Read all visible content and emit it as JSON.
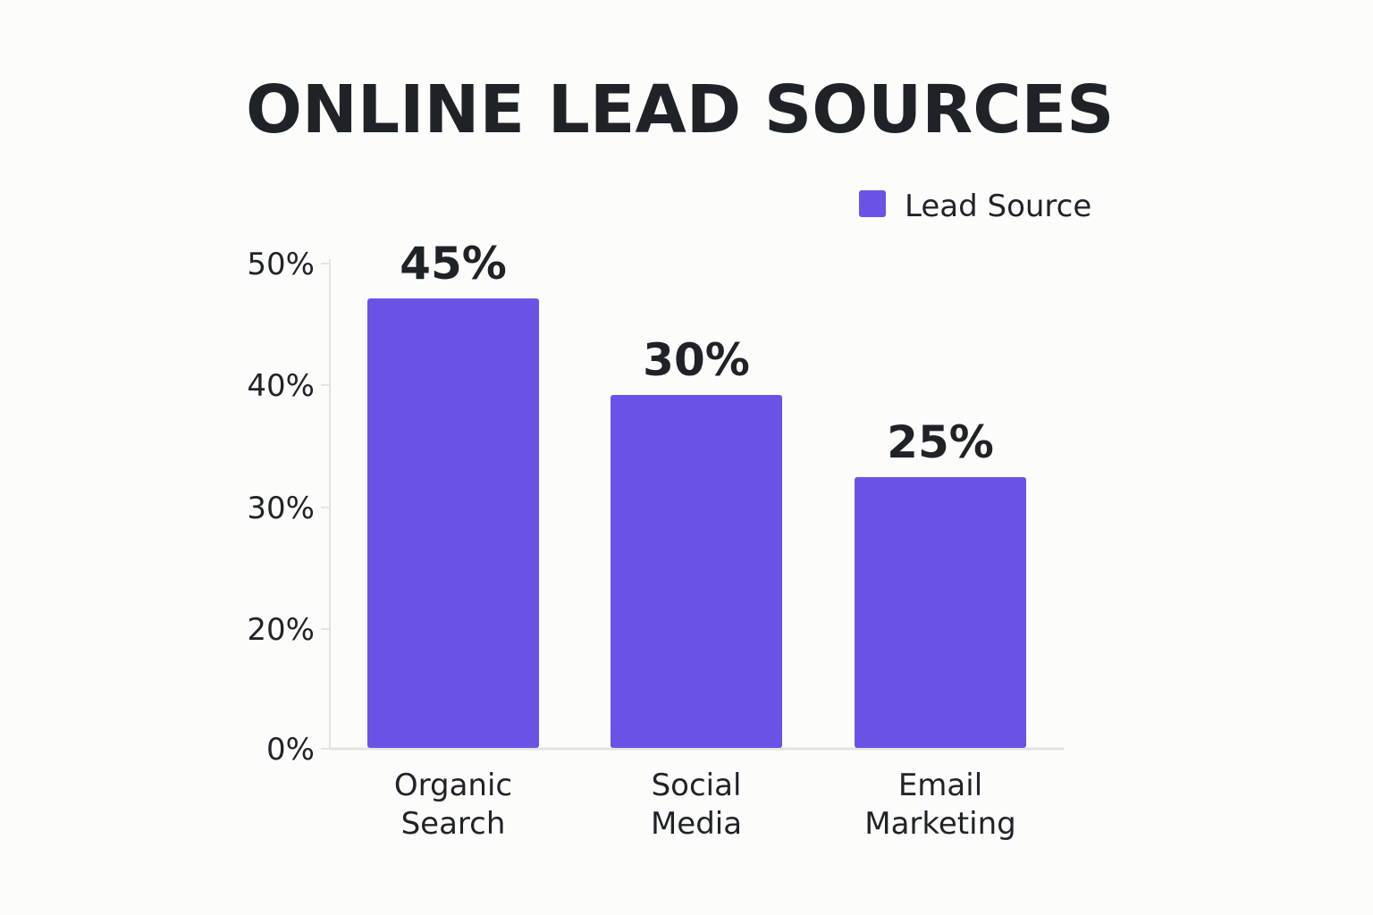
{
  "chart_data": {
    "type": "bar",
    "title": "ONLINE LEAD SOURCES",
    "categories": [
      "Organic Search",
      "Social Media",
      "Email Marketing"
    ],
    "category_lines": [
      [
        "Organic",
        "Search"
      ],
      [
        "Social",
        "Media"
      ],
      [
        "Email",
        "Marketing"
      ]
    ],
    "series": [
      {
        "name": "Lead Source",
        "values": [
          45,
          30,
          25
        ],
        "color": "#6a52e6"
      }
    ],
    "data_labels": [
      "45%",
      "30%",
      "25%"
    ],
    "y_ticks": [
      {
        "value": 0,
        "label": "0%"
      },
      {
        "value": 20,
        "label": "20%"
      },
      {
        "value": 30,
        "label": "30%"
      },
      {
        "value": 40,
        "label": "40%"
      },
      {
        "value": 50,
        "label": "50%"
      }
    ],
    "ylim": [
      0,
      50
    ],
    "legend_position": "top-right",
    "grid": false,
    "xlabel": "",
    "ylabel": ""
  }
}
